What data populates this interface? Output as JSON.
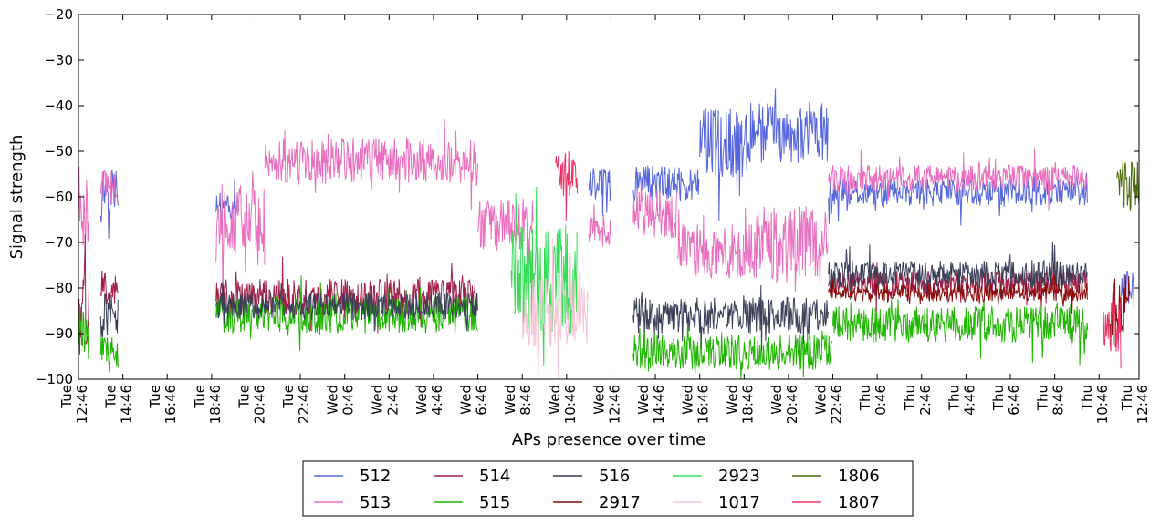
{
  "chart_data": {
    "type": "line",
    "title": "",
    "xlabel": "APs presence over time",
    "ylabel": "Signal strength",
    "ylim": [
      -100,
      -20
    ],
    "yticks": [
      -100,
      -90,
      -80,
      -70,
      -60,
      -50,
      -40,
      -30,
      -20
    ],
    "ytick_labels": [
      "−100",
      "−90",
      "−80",
      "−70",
      "−60",
      "−50",
      "−40",
      "−30",
      "−20"
    ],
    "xlim_hours": [
      0,
      47.8
    ],
    "x_tick_labels": [
      {
        "h": 0,
        "lines": [
          "Tue",
          "12:46"
        ]
      },
      {
        "h": 2,
        "lines": [
          "Tue",
          "14:46"
        ]
      },
      {
        "h": 4,
        "lines": [
          "Tue",
          "16:46"
        ]
      },
      {
        "h": 6,
        "lines": [
          "Tue",
          "18:46"
        ]
      },
      {
        "h": 8,
        "lines": [
          "Tue",
          "20:46"
        ]
      },
      {
        "h": 10,
        "lines": [
          "Tue",
          "22:46"
        ]
      },
      {
        "h": 12,
        "lines": [
          "Wed",
          "0:46"
        ]
      },
      {
        "h": 14,
        "lines": [
          "Wed",
          "2:46"
        ]
      },
      {
        "h": 16,
        "lines": [
          "Wed",
          "4:46"
        ]
      },
      {
        "h": 18,
        "lines": [
          "Wed",
          "6:46"
        ]
      },
      {
        "h": 20,
        "lines": [
          "Wed",
          "8:46"
        ]
      },
      {
        "h": 22,
        "lines": [
          "Wed",
          "10:46"
        ]
      },
      {
        "h": 24,
        "lines": [
          "Wed",
          "12:46"
        ]
      },
      {
        "h": 26,
        "lines": [
          "Wed",
          "14:46"
        ]
      },
      {
        "h": 28,
        "lines": [
          "Wed",
          "16:46"
        ]
      },
      {
        "h": 30,
        "lines": [
          "Wed",
          "18:46"
        ]
      },
      {
        "h": 32,
        "lines": [
          "Wed",
          "20:46"
        ]
      },
      {
        "h": 34,
        "lines": [
          "Wed",
          "22:46"
        ]
      },
      {
        "h": 36,
        "lines": [
          "Thu",
          "0:46"
        ]
      },
      {
        "h": 38,
        "lines": [
          "Thu",
          "2:46"
        ]
      },
      {
        "h": 40,
        "lines": [
          "Thu",
          "4:46"
        ]
      },
      {
        "h": 42,
        "lines": [
          "Thu",
          "6:46"
        ]
      },
      {
        "h": 44,
        "lines": [
          "Thu",
          "8:46"
        ]
      },
      {
        "h": 46,
        "lines": [
          "Thu",
          "10:46"
        ]
      },
      {
        "h": 47.8,
        "lines": [
          "Thu",
          "12:46"
        ]
      }
    ],
    "grid": false,
    "legend_position": "bottom-center",
    "legend_columns": 5,
    "series": [
      {
        "name": "512",
        "color": "#5566dd",
        "segments": [
          {
            "start": 1.0,
            "end": 1.8,
            "base": -58,
            "amp": 5
          },
          {
            "start": 6.2,
            "end": 7.2,
            "base": -62,
            "amp": 3
          },
          {
            "start": 23.0,
            "end": 24.0,
            "base": -57,
            "amp": 4
          },
          {
            "start": 25.0,
            "end": 28.0,
            "base": -57,
            "amp": 4
          },
          {
            "start": 28.0,
            "end": 30.0,
            "base": -48,
            "amp": 8
          },
          {
            "start": 30.0,
            "end": 33.8,
            "base": -46,
            "amp": 7
          },
          {
            "start": 33.8,
            "end": 45.5,
            "base": -59,
            "amp": 3
          },
          {
            "start": 47.0,
            "end": 47.6,
            "base": -80,
            "amp": 5
          }
        ]
      },
      {
        "name": "513",
        "color": "#ea6ebf",
        "segments": [
          {
            "start": 0.0,
            "end": 0.5,
            "base": -62,
            "amp": 10
          },
          {
            "start": 1.0,
            "end": 1.8,
            "base": -58,
            "amp": 4
          },
          {
            "start": 6.2,
            "end": 8.4,
            "base": -65,
            "amp": 8
          },
          {
            "start": 8.4,
            "end": 18.0,
            "base": -52,
            "amp": 5
          },
          {
            "start": 18.0,
            "end": 20.5,
            "base": -66,
            "amp": 6
          },
          {
            "start": 23.0,
            "end": 24.0,
            "base": -67,
            "amp": 4
          },
          {
            "start": 25.0,
            "end": 27.0,
            "base": -64,
            "amp": 6
          },
          {
            "start": 27.0,
            "end": 30.0,
            "base": -72,
            "amp": 6
          },
          {
            "start": 30.0,
            "end": 33.8,
            "base": -70,
            "amp": 8
          },
          {
            "start": 33.8,
            "end": 45.5,
            "base": -56,
            "amp": 3
          }
        ]
      },
      {
        "name": "514",
        "color": "#a01e48",
        "segments": [
          {
            "start": 0.0,
            "end": 0.5,
            "base": -85,
            "amp": 10
          },
          {
            "start": 1.0,
            "end": 1.8,
            "base": -80,
            "amp": 4
          },
          {
            "start": 6.2,
            "end": 18.0,
            "base": -82,
            "amp": 4
          },
          {
            "start": 33.8,
            "end": 45.5,
            "base": -79,
            "amp": 3
          }
        ]
      },
      {
        "name": "515",
        "color": "#1eb400",
        "segments": [
          {
            "start": 0.0,
            "end": 0.5,
            "base": -90,
            "amp": 6
          },
          {
            "start": 1.0,
            "end": 1.8,
            "base": -94,
            "amp": 4
          },
          {
            "start": 6.2,
            "end": 18.0,
            "base": -86,
            "amp": 4
          },
          {
            "start": 25.0,
            "end": 34.0,
            "base": -94,
            "amp": 4
          },
          {
            "start": 34.0,
            "end": 45.5,
            "base": -88,
            "amp": 4
          }
        ]
      },
      {
        "name": "516",
        "color": "#3a3f58",
        "segments": [
          {
            "start": 1.0,
            "end": 1.8,
            "base": -86,
            "amp": 5
          },
          {
            "start": 6.2,
            "end": 18.0,
            "base": -84,
            "amp": 3
          },
          {
            "start": 25.0,
            "end": 33.8,
            "base": -86,
            "amp": 4
          },
          {
            "start": 33.8,
            "end": 45.5,
            "base": -77,
            "amp": 3
          }
        ]
      },
      {
        "name": "2917",
        "color": "#8b0a0a",
        "segments": [
          {
            "start": 33.8,
            "end": 45.5,
            "base": -81,
            "amp": 2
          },
          {
            "start": 46.5,
            "end": 47.4,
            "base": -85,
            "amp": 8
          }
        ]
      },
      {
        "name": "2923",
        "color": "#33dd55",
        "segments": [
          {
            "start": 19.5,
            "end": 22.5,
            "base": -78,
            "amp": 12
          }
        ]
      },
      {
        "name": "1017",
        "color": "#f7c6d6",
        "segments": [
          {
            "start": 20.0,
            "end": 23.0,
            "base": -85,
            "amp": 8
          }
        ]
      },
      {
        "name": "1806",
        "color": "#4a6b0a",
        "segments": [
          {
            "start": 46.8,
            "end": 47.8,
            "base": -58,
            "amp": 6
          }
        ]
      },
      {
        "name": "1807",
        "color": "#ee3366",
        "segments": [
          {
            "start": 21.5,
            "end": 22.5,
            "base": -55,
            "amp": 5
          },
          {
            "start": 46.2,
            "end": 47.0,
            "base": -88,
            "amp": 6
          }
        ]
      }
    ]
  }
}
